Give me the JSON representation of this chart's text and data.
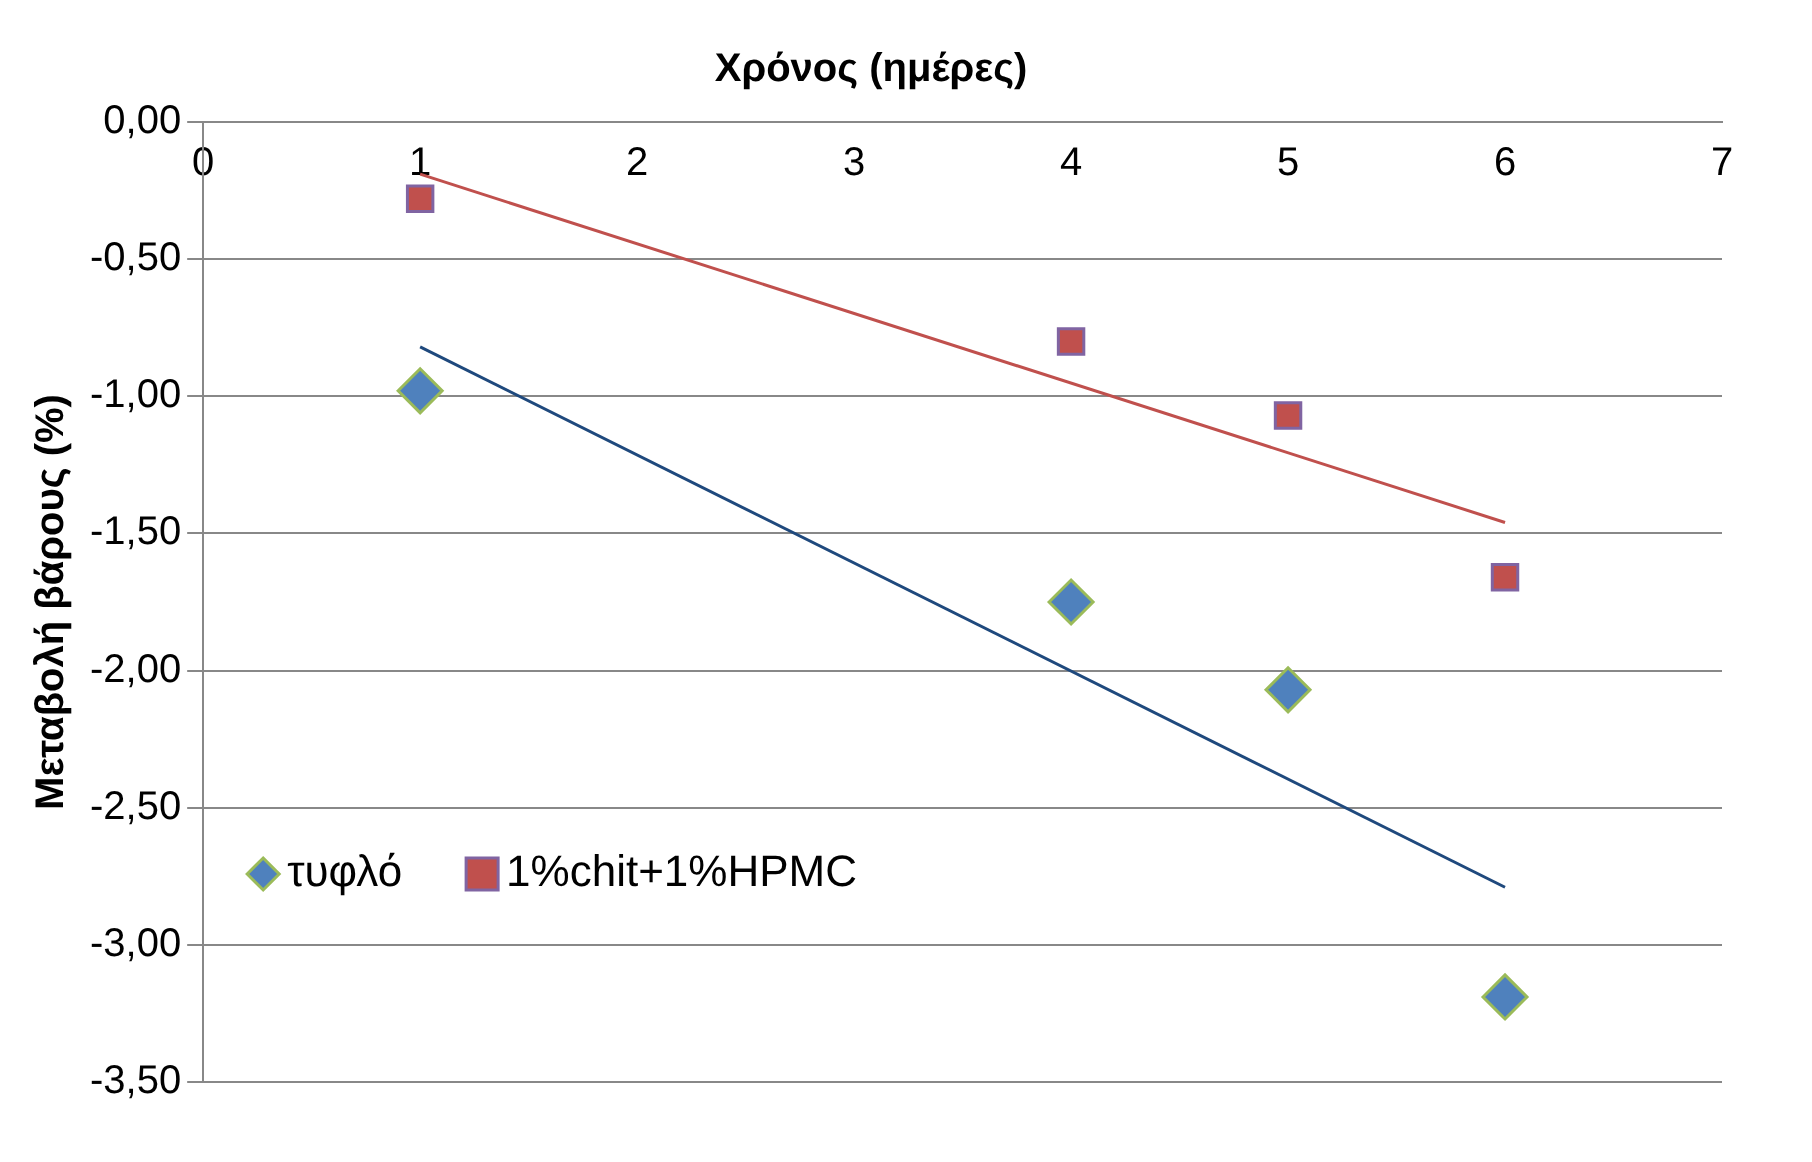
{
  "chart_data": {
    "type": "scatter",
    "xlabel": "Χρόνος (ημέρες)",
    "ylabel": "Μεταβολή βάρους (%)",
    "xlim": [
      0,
      7
    ],
    "xticks": [
      0,
      1,
      2,
      3,
      4,
      5,
      6,
      7
    ],
    "ylim": [
      -3.5,
      0
    ],
    "yticks": [
      {
        "value": 0,
        "label": "0,00"
      },
      {
        "value": -0.5,
        "label": "-0,50"
      },
      {
        "value": -1,
        "label": "-1,00"
      },
      {
        "value": -1.5,
        "label": "-1,50"
      },
      {
        "value": -2,
        "label": "-2,00"
      },
      {
        "value": -2.5,
        "label": "-2,50"
      },
      {
        "value": -3,
        "label": "-3,00"
      },
      {
        "value": -3.5,
        "label": "-3,50"
      }
    ],
    "grid": "y",
    "legend": "bottom left",
    "series": [
      {
        "name": "τυφλό",
        "color": "#4f81bd",
        "marker": "diamond",
        "x": [
          1,
          4,
          5,
          6
        ],
        "values": [
          -0.98,
          -1.75,
          -2.07,
          -3.19
        ]
      },
      {
        "name": "1%chit+1%HPMC",
        "color": "#c0504d",
        "marker": "square",
        "x": [
          1,
          4,
          5,
          6
        ],
        "values": [
          -0.28,
          -0.8,
          -1.07,
          -1.66
        ]
      },
      {
        "type": "line",
        "color": "#1f497d",
        "marker": "none",
        "x": [
          1,
          6
        ],
        "values": [
          -0.82,
          -2.79
        ]
      },
      {
        "type": "line",
        "color": "#c0504d",
        "marker": "none",
        "x": [
          1,
          6
        ],
        "values": [
          -0.19,
          -1.46
        ]
      }
    ]
  }
}
